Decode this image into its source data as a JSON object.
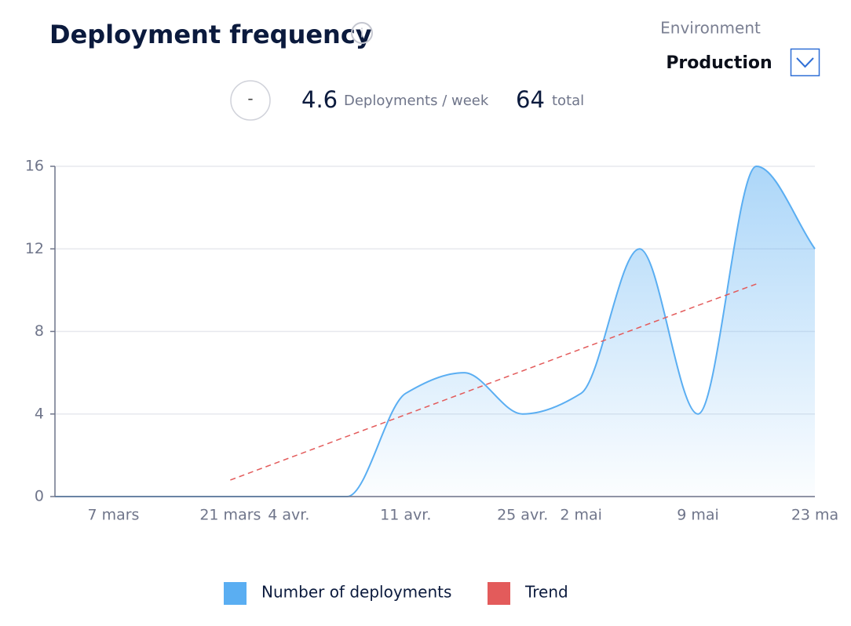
{
  "header": {
    "title": "Deployment frequency",
    "environment_label": "Environment",
    "environment_value": "Production"
  },
  "stats": {
    "button": "-",
    "rate_value": 4.6,
    "rate_label": "Deployments / week",
    "total_value": 64,
    "total_label": "total"
  },
  "chart_data": {
    "type": "area",
    "categories": [
      null,
      "7 mars",
      null,
      "21 mars",
      "4 avr.",
      null,
      "11 avr.",
      null,
      "25 avr.",
      "2 mai",
      null,
      "9 mai",
      null,
      "23 ma"
    ],
    "series": [
      {
        "name": "Number of deployments",
        "color": "#5aaef2",
        "values": [
          0,
          0,
          0,
          0,
          0,
          0,
          5,
          6,
          4,
          5,
          12,
          4,
          16,
          12
        ]
      },
      {
        "name": "Trend",
        "color": "#e35b5b",
        "values": [
          null,
          null,
          null,
          0.8,
          1.86,
          2.92,
          3.97,
          5.03,
          6.09,
          7.15,
          8.2,
          9.26,
          10.3,
          null
        ]
      }
    ],
    "ylim": [
      0,
      16
    ],
    "yticks": [
      0,
      4,
      8,
      12,
      16
    ],
    "grid": true
  }
}
